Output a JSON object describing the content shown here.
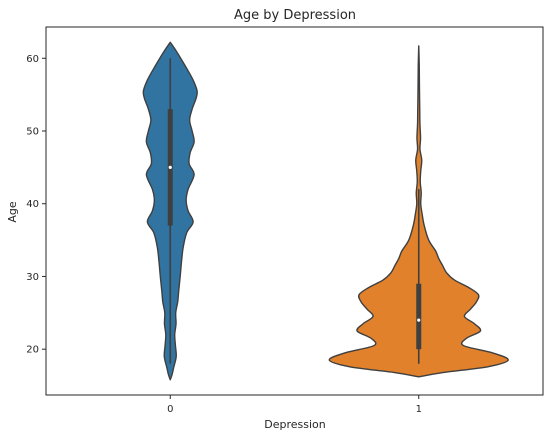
{
  "chart_data": {
    "type": "violin",
    "title": "Age by Depression",
    "xlabel": "Depression",
    "ylabel": "Age",
    "categories": [
      "0",
      "1"
    ],
    "ylim": [
      13.7,
      64.3
    ],
    "yticks": [
      20,
      30,
      40,
      50,
      60
    ],
    "grid": false,
    "legend": "none",
    "series": [
      {
        "category": "0",
        "color": "#3274a1",
        "whisker": [
          18,
          60
        ],
        "q1": 37,
        "median": 45,
        "q3": 53,
        "density": [
          [
            15.8,
            0.0
          ],
          [
            16.5,
            0.018
          ],
          [
            17.5,
            0.035
          ],
          [
            19,
            0.06
          ],
          [
            20.5,
            0.052
          ],
          [
            22,
            0.045
          ],
          [
            23.5,
            0.058
          ],
          [
            25,
            0.055
          ],
          [
            26.5,
            0.075
          ],
          [
            28,
            0.085
          ],
          [
            30,
            0.1
          ],
          [
            32,
            0.113
          ],
          [
            34,
            0.13
          ],
          [
            36,
            0.165
          ],
          [
            37.5,
            0.23
          ],
          [
            39,
            0.18
          ],
          [
            40.5,
            0.16
          ],
          [
            42,
            0.18
          ],
          [
            44,
            0.24
          ],
          [
            45.5,
            0.19
          ],
          [
            47,
            0.2
          ],
          [
            48.5,
            0.24
          ],
          [
            50,
            0.22
          ],
          [
            51.5,
            0.195
          ],
          [
            53,
            0.22
          ],
          [
            54.5,
            0.26
          ],
          [
            55.5,
            0.27
          ],
          [
            57,
            0.23
          ],
          [
            58.5,
            0.17
          ],
          [
            60,
            0.105
          ],
          [
            61,
            0.06
          ],
          [
            62.2,
            0.0
          ]
        ]
      },
      {
        "category": "1",
        "color": "#e1812c",
        "whisker": [
          18,
          42
        ],
        "q1": 20,
        "median": 24,
        "q3": 29,
        "density": [
          [
            16.2,
            0.0
          ],
          [
            16.8,
            0.25
          ],
          [
            17.6,
            0.7
          ],
          [
            18.5,
            0.9
          ],
          [
            19.5,
            0.74
          ],
          [
            20.5,
            0.45
          ],
          [
            21.5,
            0.48
          ],
          [
            22.5,
            0.62
          ],
          [
            23.5,
            0.56
          ],
          [
            24.5,
            0.46
          ],
          [
            25.5,
            0.52
          ],
          [
            26.5,
            0.58
          ],
          [
            27.5,
            0.6
          ],
          [
            28.5,
            0.5
          ],
          [
            29.5,
            0.36
          ],
          [
            30.5,
            0.28
          ],
          [
            31.5,
            0.24
          ],
          [
            32.5,
            0.2
          ],
          [
            33.5,
            0.17
          ],
          [
            35,
            0.1
          ],
          [
            37,
            0.055
          ],
          [
            38.5,
            0.035
          ],
          [
            40,
            0.02
          ],
          [
            41.5,
            0.025
          ],
          [
            43,
            0.015
          ],
          [
            44.5,
            0.02
          ],
          [
            46,
            0.03
          ],
          [
            47.5,
            0.012
          ],
          [
            49,
            0.018
          ],
          [
            51,
            0.012
          ],
          [
            53,
            0.01
          ],
          [
            56,
            0.007
          ],
          [
            59,
            0.005
          ],
          [
            61.7,
            0.0
          ]
        ]
      }
    ]
  }
}
